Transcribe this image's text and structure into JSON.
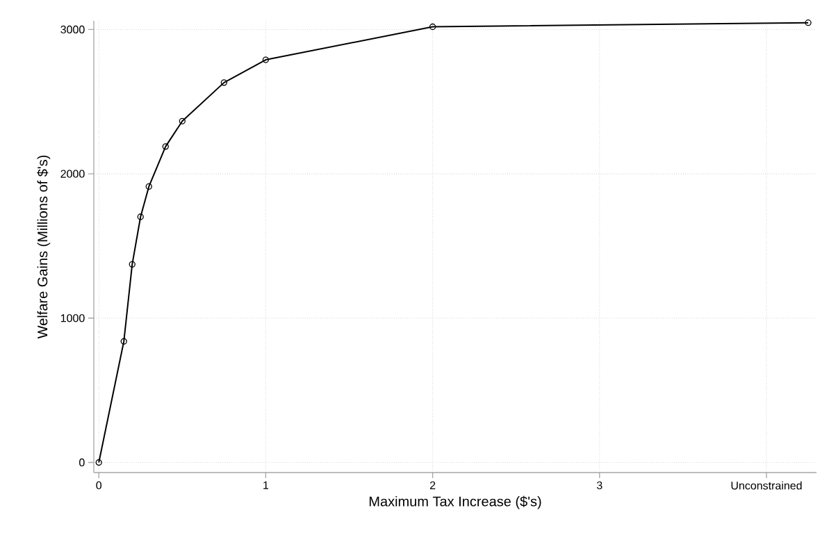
{
  "chart_data": {
    "type": "line",
    "xlabel": "Maximum Tax Increase ($'s)",
    "ylabel": "Welfare Gains (Millions of $'s)",
    "x": [
      0,
      0.15,
      0.2,
      0.25,
      0.3,
      0.4,
      0.5,
      0.75,
      1,
      2,
      4.25
    ],
    "series": [
      {
        "color": "#000000",
        "values": [
          0,
          839,
          1373,
          1702,
          1912,
          2189,
          2365,
          2632,
          2790,
          3019,
          3047
        ]
      }
    ],
    "xlim": [
      -0.03,
      4.3
    ],
    "ylim": [
      -70,
      3060
    ],
    "xticks": [
      0,
      1,
      2,
      3,
      {
        "value": 4,
        "label": "Unconstrained"
      }
    ],
    "yticks": [
      0,
      1000,
      2000,
      3000
    ],
    "grid": true,
    "marker": "circle",
    "line_style": "solid"
  }
}
